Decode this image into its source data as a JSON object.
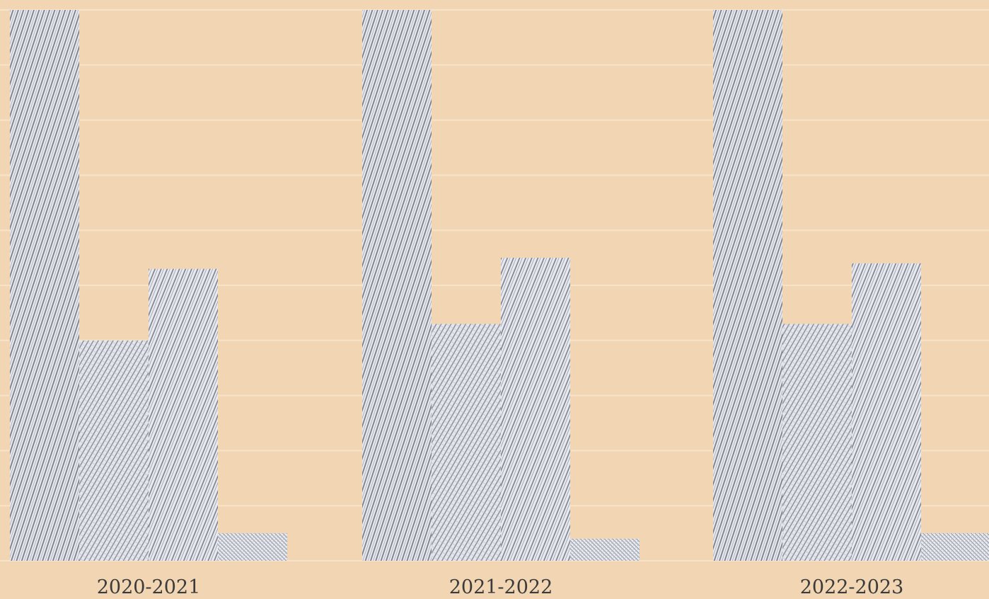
{
  "chart_data": {
    "type": "bar",
    "title": "",
    "xlabel": "",
    "ylabel": "",
    "categories": [
      "2020-2021",
      "2021-2022",
      "2022-2023"
    ],
    "series": [
      {
        "values": [
          100,
          100,
          100
        ]
      },
      {
        "values": [
          40,
          43,
          43
        ]
      },
      {
        "values": [
          53,
          55,
          54
        ]
      },
      {
        "values": [
          5,
          4,
          5
        ]
      }
    ],
    "ylim": [
      0,
      100
    ],
    "grid": true,
    "legend": "none",
    "colors": {
      "background": "#f2d6b3",
      "grid": "#f7e3c9",
      "bar_base": "#e4e6ec",
      "hatch": "#6f7483",
      "label": "#3b3b3b"
    }
  }
}
